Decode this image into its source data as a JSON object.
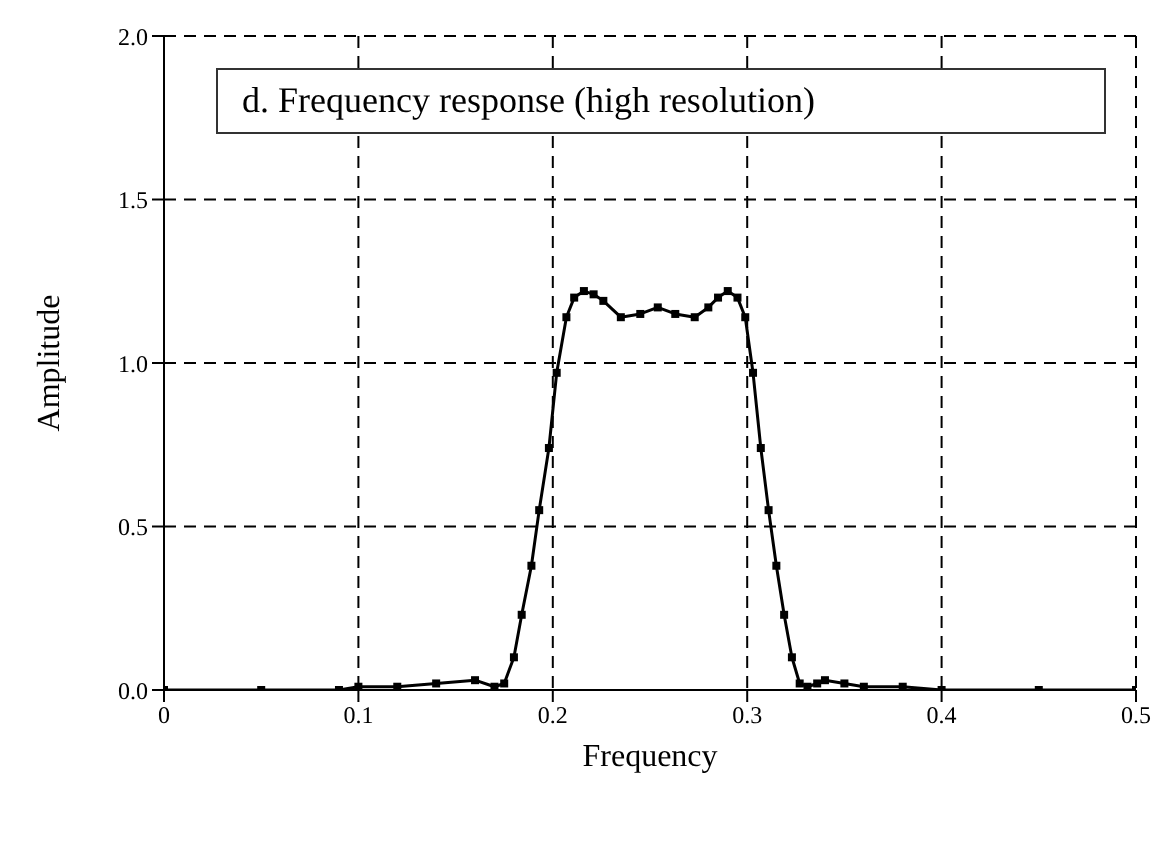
{
  "chart_data": {
    "type": "line",
    "title": "d.  Frequency response (high resolution)",
    "xlabel": "Frequency",
    "ylabel": "Amplitude",
    "x": [
      0,
      0.05,
      0.09,
      0.1,
      0.12,
      0.14,
      0.16,
      0.17,
      0.175,
      0.18,
      0.184,
      0.189,
      0.193,
      0.198,
      0.202,
      0.207,
      0.211,
      0.216,
      0.221,
      0.226,
      0.235,
      0.245,
      0.254,
      0.263,
      0.273,
      0.28,
      0.285,
      0.29,
      0.295,
      0.299,
      0.303,
      0.307,
      0.311,
      0.315,
      0.319,
      0.323,
      0.327,
      0.331,
      0.336,
      0.34,
      0.35,
      0.36,
      0.38,
      0.4,
      0.45,
      0.5
    ],
    "series": [
      {
        "color": "#000000",
        "values": [
          0,
          0,
          0,
          0.01,
          0.01,
          0.02,
          0.03,
          0.01,
          0.02,
          0.1,
          0.23,
          0.38,
          0.55,
          0.74,
          0.97,
          1.14,
          1.2,
          1.22,
          1.21,
          1.19,
          1.14,
          1.15,
          1.17,
          1.15,
          1.14,
          1.17,
          1.2,
          1.22,
          1.2,
          1.14,
          0.97,
          0.74,
          0.55,
          0.38,
          0.23,
          0.1,
          0.02,
          0.01,
          0.02,
          0.03,
          0.02,
          0.01,
          0.01,
          0,
          0,
          0
        ]
      }
    ],
    "xlim": [
      0,
      0.5
    ],
    "xticks": [
      0,
      0.1,
      0.2,
      0.3,
      0.4,
      0.5
    ],
    "ylim": [
      0,
      2
    ],
    "yticks": [
      {
        "value": 0,
        "label": "0.0"
      },
      {
        "value": 0.5,
        "label": "0.5"
      },
      {
        "value": 1,
        "label": "1.0"
      },
      {
        "value": 1.5,
        "label": "1.5"
      },
      {
        "value": 2,
        "label": "2.0"
      }
    ],
    "grid": true,
    "marker": "square",
    "line_style": "solid"
  }
}
